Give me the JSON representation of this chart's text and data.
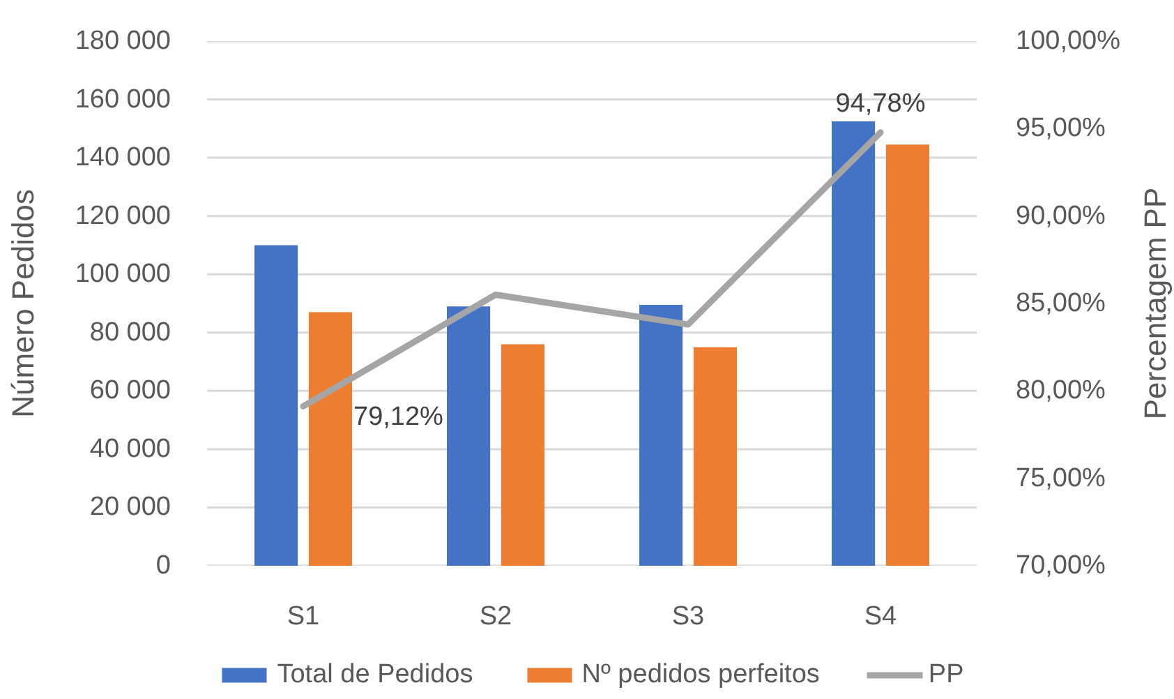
{
  "chart_data": {
    "type": "bar",
    "categories": [
      "S1",
      "S2",
      "S3",
      "S4"
    ],
    "series": [
      {
        "name": "Total de Pedidos",
        "color": "#4472c4",
        "values": [
          110000,
          89000,
          89500,
          152500
        ]
      },
      {
        "name": "Nº pedidos perfeitos",
        "color": "#ed7d31",
        "values": [
          87000,
          76000,
          75000,
          144500
        ]
      },
      {
        "name": "PP",
        "type": "line",
        "axis": "y2",
        "color": "#a5a5a5",
        "values": [
          79.12,
          85.5,
          83.8,
          94.78
        ],
        "value_labels": [
          "79,12%",
          null,
          null,
          "94,78%"
        ]
      }
    ],
    "ylabel": "Número Pedidos",
    "y2label": "Percentagem PP",
    "ylim": [
      0,
      180000
    ],
    "yticks": [
      0,
      {
        "value": 20000,
        "label": "20 000"
      },
      {
        "value": 40000,
        "label": "40 000"
      },
      {
        "value": 60000,
        "label": "60 000"
      },
      {
        "value": 80000,
        "label": "80 000"
      },
      {
        "value": 100000,
        "label": "100 000"
      },
      {
        "value": 120000,
        "label": "120 000"
      },
      {
        "value": 140000,
        "label": "140 000"
      },
      {
        "value": 160000,
        "label": "160 000"
      },
      {
        "value": 180000,
        "label": "180 000"
      }
    ],
    "y2lim": [
      70,
      100
    ],
    "y2ticks": [
      {
        "value": 70,
        "label": "70,00%"
      },
      {
        "value": 75,
        "label": "75,00%"
      },
      {
        "value": 80,
        "label": "80,00%"
      },
      {
        "value": 85,
        "label": "85,00%"
      },
      {
        "value": 90,
        "label": "90,00%"
      },
      {
        "value": 95,
        "label": "95,00%"
      },
      {
        "value": 100,
        "label": "100,00%"
      }
    ],
    "grid": "y",
    "legend": "bottom"
  }
}
